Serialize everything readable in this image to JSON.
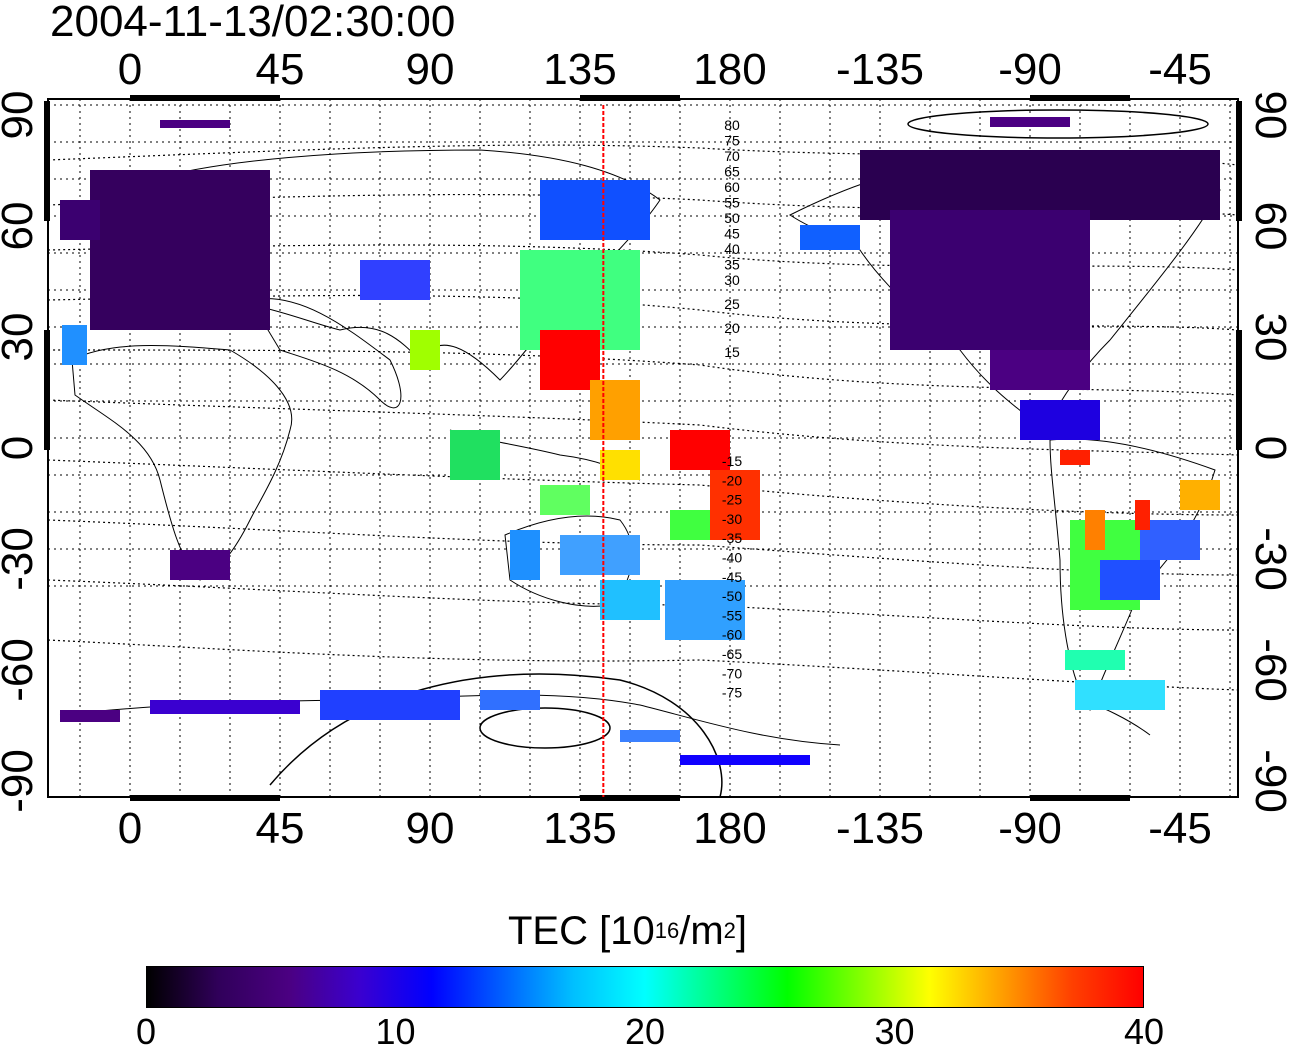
{
  "timestamp": "2004-11-13/02:30:00",
  "map": {
    "lon_labels": [
      "0",
      "45",
      "90",
      "135",
      "180",
      "-135",
      "-90",
      "-45"
    ],
    "lat_labels": [
      "90",
      "60",
      "30",
      "0",
      "-30",
      "-60",
      "-90"
    ],
    "dip_labels_north": [
      "80",
      "75",
      "70",
      "65",
      "60",
      "55",
      "50",
      "45",
      "40",
      "35",
      "30",
      "25",
      "20",
      "15"
    ],
    "dip_labels_south": [
      "-15",
      "-20",
      "-25",
      "-30",
      "-35",
      "-40",
      "-45",
      "-50",
      "-55",
      "-60",
      "-65",
      "-70",
      "-75"
    ],
    "marker_longitude": 142,
    "grid": true,
    "marker_color": "#ff0000"
  },
  "colorbar": {
    "title_prefix": "TEC  [10",
    "title_exp1": "16",
    "title_mid": "/m",
    "title_exp2": "2",
    "title_suffix": "]",
    "min": 0,
    "max": 40,
    "ticks": [
      "0",
      "10",
      "20",
      "30",
      "40"
    ],
    "colors": [
      "#000000",
      "#30005a",
      "#4b0082",
      "#3a00d0",
      "#0000ff",
      "#0060ff",
      "#00c0ff",
      "#00ffff",
      "#00ff80",
      "#00ff00",
      "#80ff00",
      "#ffff00",
      "#ffa000",
      "#ff4000",
      "#ff0000"
    ]
  }
}
